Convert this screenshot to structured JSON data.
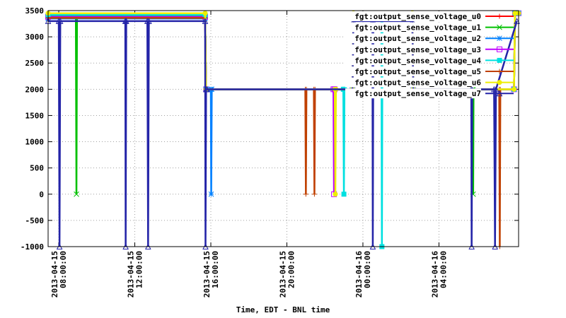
{
  "chart_data": {
    "type": "line",
    "x_label": "Time, EDT - BNL time",
    "xlim": [
      7.44,
      32.19
    ],
    "xticks": [
      {
        "value": 8,
        "label": [
          "2013-04-15",
          "08:00:00"
        ]
      },
      {
        "value": 12,
        "label": [
          "2013-04-15",
          "12:00:00"
        ]
      },
      {
        "value": 16,
        "label": [
          "2013-04-15",
          "16:00:00"
        ]
      },
      {
        "value": 20,
        "label": [
          "2013-04-15",
          "20:00:00"
        ]
      },
      {
        "value": 24,
        "label": [
          "2013-04-16",
          "00:00:00"
        ]
      },
      {
        "value": 28,
        "label": [
          "2013-04-16",
          "04:00:00"
        ]
      }
    ],
    "ylim": [
      -1000,
      3500
    ],
    "yticks": [
      -1000,
      -500,
      0,
      500,
      1000,
      1500,
      2000,
      2500,
      3000,
      3500
    ],
    "grid": true,
    "legend": "top-right",
    "series": [
      {
        "name": "fgt:output_sense_voltage_u0",
        "color": "#ff0000",
        "marker": "plus",
        "x": [
          7.44,
          15.7,
          15.75,
          23.45,
          23.5,
          26.6,
          26.65,
          31.95,
          32.0,
          32.19
        ],
        "values": [
          3370,
          3370,
          2000,
          2000,
          3370,
          3370,
          2000,
          2000,
          3450,
          3450
        ]
      },
      {
        "name": "fgt:output_sense_voltage_u1",
        "color": "#00c000",
        "marker": "cross",
        "x": [
          7.44,
          8.9,
          8.93,
          8.96,
          15.7,
          15.75,
          23.45,
          23.5,
          26.6,
          26.65,
          29.78,
          29.8,
          29.82,
          31.95,
          32.0,
          32.19
        ],
        "values": [
          3400,
          3400,
          0,
          3400,
          3400,
          2000,
          2000,
          3400,
          3400,
          2000,
          2000,
          0,
          2000,
          2000,
          3450,
          3450
        ]
      },
      {
        "name": "fgt:output_sense_voltage_u2",
        "color": "#0080ff",
        "marker": "star",
        "x": [
          7.44,
          15.7,
          15.75,
          16.0,
          16.02,
          16.05,
          23.45,
          23.5,
          26.6,
          26.65,
          31.95,
          32.0,
          32.19
        ],
        "values": [
          3350,
          3350,
          2000,
          2000,
          0,
          2000,
          2000,
          3350,
          3350,
          2000,
          2000,
          3450,
          3450
        ]
      },
      {
        "name": "fgt:output_sense_voltage_u3",
        "color": "#c000ff",
        "marker": "square",
        "x": [
          7.44,
          15.7,
          15.75,
          22.45,
          22.48,
          22.51,
          23.45,
          23.5,
          26.6,
          26.65,
          31.95,
          32.0,
          32.19
        ],
        "values": [
          3380,
          3380,
          2000,
          2000,
          0,
          2000,
          2000,
          3380,
          3380,
          2000,
          2000,
          3450,
          3450
        ]
      },
      {
        "name": "fgt:output_sense_voltage_u4",
        "color": "#00e0e0",
        "marker": "filled-square",
        "x": [
          7.44,
          15.7,
          15.75,
          22.97,
          23.0,
          23.03,
          23.45,
          23.5,
          24.97,
          25.0,
          25.03,
          26.6,
          26.65,
          31.95,
          32.0,
          32.19
        ],
        "values": [
          3420,
          3420,
          2000,
          2000,
          0,
          2000,
          2000,
          3420,
          3420,
          -1000,
          3420,
          3420,
          2000,
          2000,
          3450,
          3450
        ]
      },
      {
        "name": "fgt:output_sense_voltage_u5",
        "color": "#c04000",
        "marker": "plus",
        "x": [
          7.44,
          15.7,
          15.75,
          20.97,
          21.0,
          21.03,
          21.42,
          21.45,
          21.48,
          23.45,
          23.5,
          26.6,
          26.65,
          31.17,
          31.2,
          31.23,
          31.95,
          32.0,
          32.19
        ],
        "values": [
          3360,
          3360,
          2000,
          2000,
          0,
          2000,
          2000,
          0,
          2000,
          2000,
          3360,
          3360,
          2000,
          2000,
          -1000,
          2000,
          2000,
          3450,
          3450
        ]
      },
      {
        "name": "fgt:output_sense_voltage_u6",
        "color": "#eeee00",
        "marker": "circle",
        "x": [
          7.44,
          15.7,
          15.75,
          22.52,
          22.55,
          22.58,
          23.45,
          23.5,
          26.6,
          26.65,
          31.95,
          32.0,
          32.19
        ],
        "values": [
          3450,
          3450,
          2000,
          2000,
          0,
          2000,
          2000,
          3450,
          3450,
          2000,
          2000,
          3450,
          3450
        ]
      },
      {
        "name": "fgt:output_sense_voltage_u7",
        "color": "#2424a8",
        "marker": "triangle",
        "x": [
          7.44,
          8.0,
          8.04,
          8.08,
          11.5,
          11.52,
          11.55,
          12.66,
          12.7,
          12.74,
          15.7,
          15.72,
          15.75,
          15.8,
          23.45,
          23.5,
          24.5,
          24.52,
          24.55,
          26.6,
          26.65,
          29.7,
          29.72,
          29.75,
          30.9,
          30.95,
          31.0,
          32.1
        ],
        "values": [
          3300,
          3300,
          -1000,
          3300,
          3300,
          -1000,
          3300,
          3300,
          -1000,
          3300,
          3300,
          -1000,
          2000,
          2000,
          2000,
          3300,
          3300,
          -1000,
          3300,
          3300,
          2000,
          2000,
          -1000,
          2000,
          2000,
          -1000,
          2000,
          3300
        ]
      }
    ]
  }
}
